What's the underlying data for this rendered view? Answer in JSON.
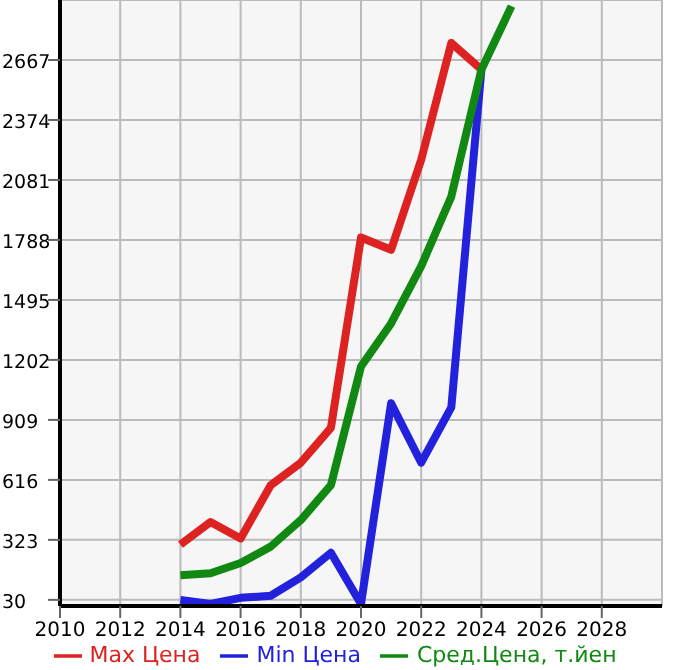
{
  "chart_data": {
    "type": "line",
    "x": [
      2014,
      2015,
      2016,
      2017,
      2018,
      2019,
      2020,
      2021,
      2022,
      2023,
      2024,
      2025
    ],
    "series": [
      {
        "name": "Max Цена",
        "color": "#dd2222",
        "values": [
          300,
          410,
          330,
          590,
          700,
          870,
          1800,
          1740,
          2180,
          2750,
          2620,
          null
        ]
      },
      {
        "name": "Min Цена",
        "color": "#2222dd",
        "values": [
          30,
          10,
          40,
          50,
          140,
          260,
          10,
          990,
          700,
          970,
          2620,
          null
        ]
      },
      {
        "name": "Сред.Цена, т.йен",
        "color": "#118811",
        "values": [
          150,
          160,
          210,
          290,
          420,
          590,
          1170,
          1380,
          1660,
          2000,
          2620,
          2930
        ]
      }
    ],
    "xlim": [
      2010,
      2030
    ],
    "xticks": [
      2010,
      2012,
      2014,
      2016,
      2018,
      2020,
      2022,
      2024,
      2026,
      2028
    ],
    "ylim": [
      0,
      2960
    ],
    "yticks": [
      30,
      323,
      616,
      909,
      1202,
      1495,
      1788,
      2081,
      2374,
      2667
    ],
    "grid": true,
    "legend": "bottom",
    "marker": "none",
    "line_style": "solid"
  }
}
